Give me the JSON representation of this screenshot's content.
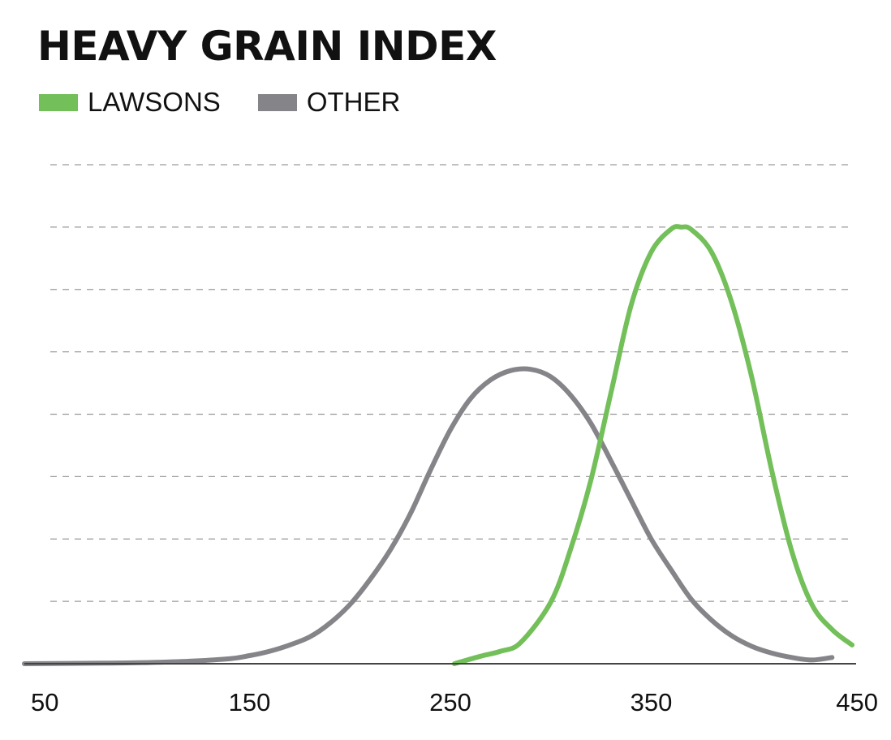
{
  "chart_data": {
    "type": "line",
    "title": "HEAVY GRAIN INDEX",
    "xlabel": "",
    "ylabel": "",
    "xlim": [
      50,
      450
    ],
    "ylim": [
      0,
      8
    ],
    "x_ticks": [
      50,
      150,
      250,
      350,
      450
    ],
    "grid": true,
    "legend": "top-left",
    "series": [
      {
        "name": "LAWSONS",
        "color": "#73bf59",
        "x": [
          252,
          265,
          275,
          285,
          300,
          310,
          320,
          330,
          340,
          350,
          360,
          365,
          370,
          380,
          390,
          400,
          410,
          420,
          430,
          440,
          450
        ],
        "y": [
          0.0,
          0.12,
          0.2,
          0.34,
          0.99,
          1.85,
          2.95,
          4.35,
          5.75,
          6.6,
          6.97,
          7.0,
          6.96,
          6.6,
          5.8,
          4.6,
          3.1,
          1.8,
          0.95,
          0.55,
          0.3
        ]
      },
      {
        "name": "OTHER",
        "color": "#858589",
        "x": [
          50,
          80,
          100,
          120,
          140,
          150,
          160,
          170,
          180,
          190,
          200,
          210,
          220,
          230,
          240,
          250,
          260,
          270,
          280,
          290,
          300,
          310,
          320,
          330,
          340,
          350,
          360,
          370,
          380,
          390,
          400,
          410,
          420,
          430,
          440
        ],
        "y": [
          0.0,
          0.01,
          0.02,
          0.04,
          0.08,
          0.13,
          0.2,
          0.3,
          0.43,
          0.65,
          0.95,
          1.35,
          1.82,
          2.4,
          3.1,
          3.75,
          4.25,
          4.55,
          4.7,
          4.72,
          4.6,
          4.3,
          3.85,
          3.25,
          2.62,
          2.0,
          1.5,
          1.03,
          0.7,
          0.45,
          0.28,
          0.17,
          0.1,
          0.06,
          0.1
        ]
      }
    ]
  }
}
